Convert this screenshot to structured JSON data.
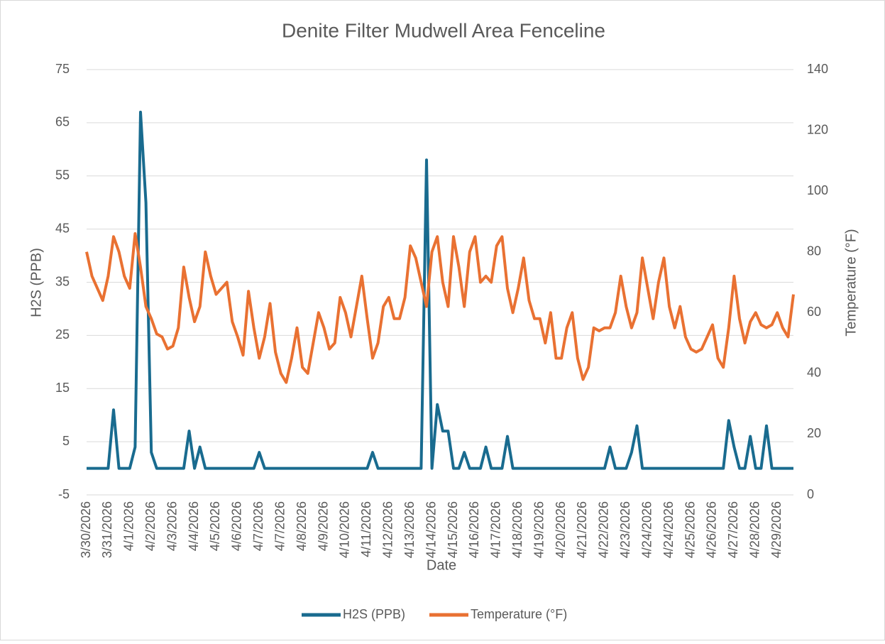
{
  "chart_data": {
    "type": "line",
    "title": "Denite Filter Mudwell Area Fenceline",
    "xlabel": "Date",
    "ylabel": "H2S (PPB)",
    "y2label": "Temperature (°F)",
    "categories": [
      "3/30/2026",
      null,
      null,
      null,
      "3/31/2026",
      null,
      null,
      null,
      "4/1/2026",
      null,
      null,
      null,
      "4/2/2026",
      null,
      null,
      null,
      "4/3/2026",
      null,
      null,
      null,
      "4/4/2026",
      null,
      null,
      null,
      "4/5/2026",
      null,
      null,
      null,
      "4/6/2026",
      null,
      null,
      null,
      "4/7/2026",
      null,
      null,
      null,
      "4/7/2026",
      null,
      null,
      null,
      "4/8/2026",
      null,
      null,
      null,
      "4/9/2026",
      null,
      null,
      null,
      "4/10/2026",
      null,
      null,
      null,
      "4/11/2026",
      null,
      null,
      null,
      "4/12/2026",
      null,
      null,
      null,
      "4/13/2026",
      null,
      null,
      null,
      "4/14/2026",
      null,
      null,
      null,
      "4/15/2026",
      null,
      null,
      null,
      "4/16/2026",
      null,
      null,
      null,
      "4/17/2026",
      null,
      null,
      null,
      "4/18/2026",
      null,
      null,
      null,
      "4/19/2026",
      null,
      null,
      null,
      "4/20/2026",
      null,
      null,
      null,
      "4/21/2026",
      null,
      null,
      null,
      "4/22/2026",
      null,
      null,
      null,
      "4/23/2026",
      null,
      null,
      null,
      "4/24/2026",
      null,
      null,
      null,
      "4/24/2026",
      null,
      null,
      null,
      "4/25/2026",
      null,
      null,
      null,
      "4/26/2026",
      null,
      null,
      null,
      "4/27/2026",
      null,
      null,
      null,
      "4/28/2026",
      null,
      null,
      null,
      "4/29/2026",
      null,
      null,
      null
    ],
    "series": [
      {
        "name": "H2S (PPB)",
        "color": "#196b8f",
        "values": [
          0,
          0,
          0,
          0,
          0,
          11,
          0,
          0,
          0,
          4,
          67,
          50,
          3,
          0,
          0,
          0,
          0,
          0,
          0,
          7,
          0,
          4,
          0,
          0,
          0,
          0,
          0,
          0,
          0,
          0,
          0,
          0,
          3,
          0,
          0,
          0,
          0,
          0,
          0,
          0,
          0,
          0,
          0,
          0,
          0,
          0,
          0,
          0,
          0,
          0,
          0,
          0,
          0,
          3,
          0,
          0,
          0,
          0,
          0,
          0,
          0,
          0,
          0,
          58,
          0,
          12,
          7,
          7,
          0,
          0,
          3,
          0,
          0,
          0,
          4,
          0,
          0,
          0,
          6,
          0,
          0,
          0,
          0,
          0,
          0,
          0,
          0,
          0,
          0,
          0,
          0,
          0,
          0,
          0,
          0,
          0,
          0,
          4,
          0,
          0,
          0,
          3,
          8,
          0,
          0,
          0,
          0,
          0,
          0,
          0,
          0,
          0,
          0,
          0,
          0,
          0,
          0,
          0,
          0,
          9,
          4,
          0,
          0,
          6,
          0,
          0,
          8,
          0,
          0,
          0,
          0,
          0
        ]
      },
      {
        "name": "Temperature (°F)",
        "color": "#e97132",
        "axis": "y2",
        "values": [
          80,
          72,
          68,
          64,
          72,
          85,
          80,
          72,
          68,
          86,
          75,
          62,
          58,
          53,
          52,
          48,
          49,
          55,
          75,
          65,
          57,
          62,
          80,
          72,
          66,
          68,
          70,
          57,
          52,
          46,
          67,
          55,
          45,
          52,
          63,
          47,
          40,
          37,
          45,
          55,
          42,
          40,
          50,
          60,
          55,
          48,
          50,
          65,
          60,
          52,
          62,
          72,
          58,
          45,
          50,
          62,
          65,
          58,
          58,
          65,
          82,
          78,
          70,
          62,
          80,
          85,
          70,
          62,
          85,
          75,
          62,
          80,
          85,
          70,
          72,
          70,
          82,
          85,
          68,
          60,
          68,
          78,
          64,
          58,
          58,
          50,
          60,
          45,
          45,
          55,
          60,
          45,
          38,
          42,
          55,
          54,
          55,
          55,
          60,
          72,
          62,
          55,
          60,
          78,
          68,
          58,
          70,
          78,
          62,
          55,
          62,
          52,
          48,
          47,
          48,
          52,
          56,
          45,
          42,
          55,
          72,
          58,
          50,
          57,
          60,
          56,
          55,
          56,
          60,
          55,
          52,
          66
        ]
      }
    ],
    "ylim": [
      -5,
      75
    ],
    "yticks": [
      -5,
      5,
      15,
      25,
      35,
      45,
      55,
      65,
      75
    ],
    "y2lim": [
      0,
      140
    ],
    "y2ticks": [
      0,
      20,
      40,
      60,
      80,
      100,
      120,
      140
    ],
    "grid": true,
    "legend": "bottom"
  }
}
